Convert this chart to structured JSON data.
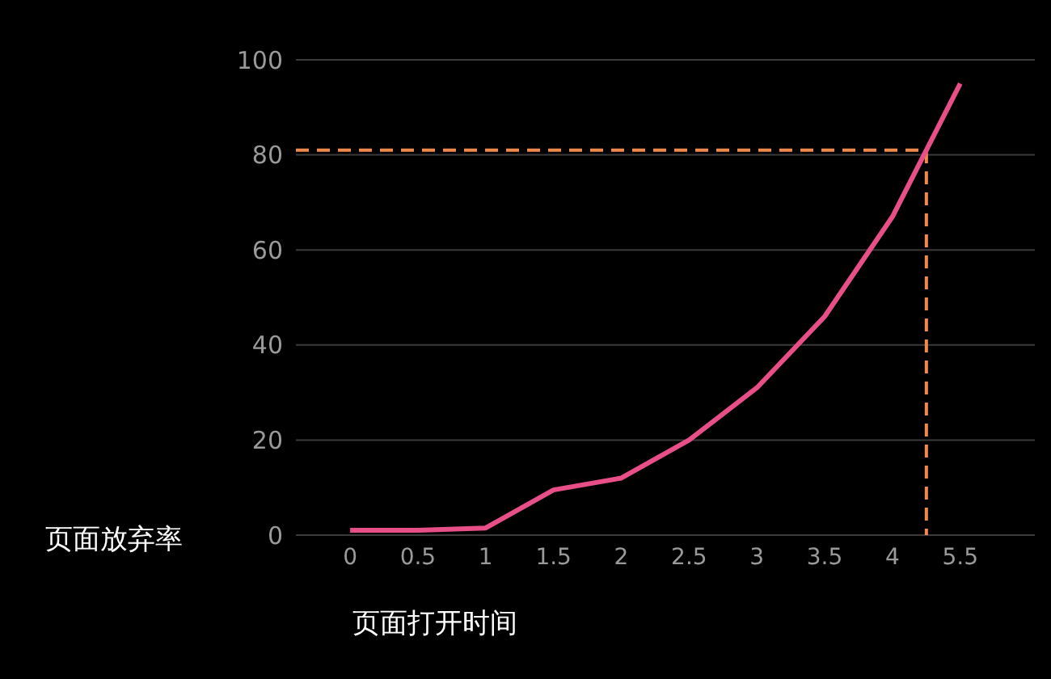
{
  "chart_data": {
    "type": "line",
    "xlabel": "页面打开时间",
    "ylabel": "页面放弃率",
    "categories": [
      "0",
      "0.5",
      "1",
      "1.5",
      "2",
      "2.5",
      "3",
      "3.5",
      "4",
      "5.5"
    ],
    "series": [
      {
        "color": "#e84f88",
        "values": [
          1,
          1,
          1.5,
          9.5,
          12,
          20,
          31,
          46,
          67,
          95
        ]
      }
    ],
    "ylim": [
      0,
      100
    ],
    "yticks": [
      0,
      20,
      40,
      60,
      80,
      100
    ],
    "grid": "y",
    "marker": "none",
    "line_style": "solid",
    "ref_lines": [
      {
        "axis": "y",
        "value": 81,
        "color": "#f08a4b",
        "line_style": "dashed"
      }
    ]
  }
}
